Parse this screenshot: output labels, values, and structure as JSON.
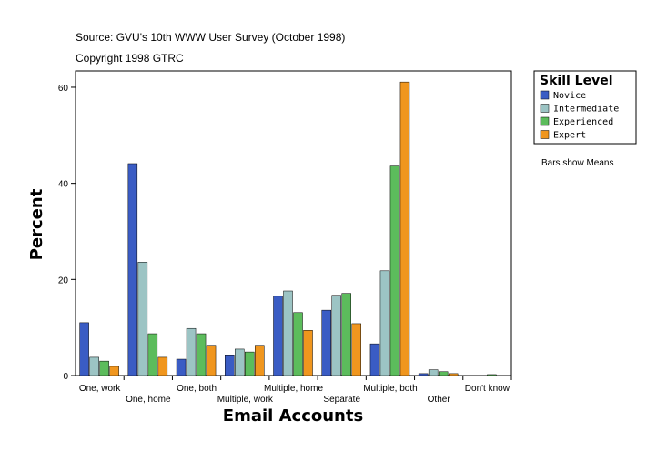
{
  "chart_data": {
    "type": "bar",
    "source": "Source: GVU's 10th WWW User Survey (October 1998)",
    "copyright": "Copyright 1998 GTRC",
    "note": "Bars show Means",
    "legend_title": "Skill Level",
    "y_label": "Percent",
    "x_label": "Email Accounts",
    "categories": [
      "One, work",
      "One, home",
      "One, both",
      "Multiple, work",
      "Multiple, home",
      "Separate",
      "Multiple, both",
      "Other",
      "Don't know"
    ],
    "series": [
      {
        "name": "Novice",
        "color": "#3a5cc4",
        "values": [
          11.0,
          44.1,
          3.4,
          4.3,
          16.5,
          13.6,
          6.6,
          0.4,
          0
        ]
      },
      {
        "name": "Intermediate",
        "color": "#9cc4c4",
        "values": [
          3.8,
          23.6,
          9.8,
          5.5,
          17.6,
          16.7,
          21.8,
          1.2,
          0
        ]
      },
      {
        "name": "Experienced",
        "color": "#5cbc5c",
        "values": [
          3.0,
          8.7,
          8.7,
          4.9,
          13.1,
          17.1,
          43.6,
          0.8,
          0.2
        ]
      },
      {
        "name": "Expert",
        "color": "#f0961e",
        "values": [
          1.9,
          3.8,
          6.3,
          6.3,
          9.4,
          10.8,
          61.1,
          0.4,
          0
        ]
      }
    ],
    "ylim": [
      0,
      63.4
    ],
    "yticks": [
      0,
      20,
      40,
      60
    ]
  }
}
